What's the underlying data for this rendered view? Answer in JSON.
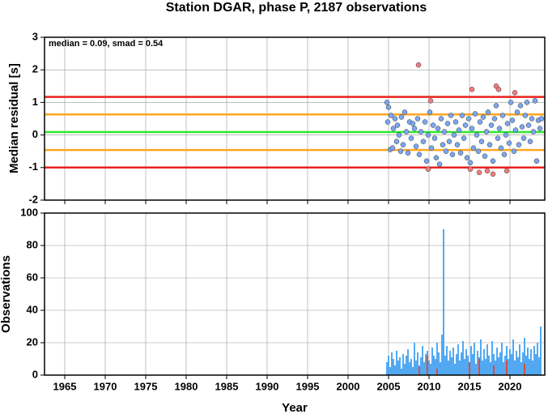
{
  "chart_data": [
    {
      "type": "scatter",
      "title": "Station DGAR, phase P, 2187 observations",
      "ylabel": "Median residual [s]",
      "annotation": "median = 0.09, smad = 0.54",
      "xlim": [
        1962.5,
        2024.3
      ],
      "ylim": [
        -2,
        3
      ],
      "yticks": [
        -2,
        -1,
        0,
        1,
        2,
        3
      ],
      "grid": true,
      "hlines": [
        {
          "value": 1.17,
          "color": "#e8231c"
        },
        {
          "value": -1.0,
          "color": "#e8231c"
        },
        {
          "value": 0.63,
          "color": "#ffa621"
        },
        {
          "value": -0.46,
          "color": "#ffa621"
        },
        {
          "value": 0.09,
          "color": "#2ee82e"
        }
      ],
      "series": [
        {
          "color": "#7aa7f0",
          "x": [
            2004.8,
            2004.9,
            2005.0,
            2005.2,
            2005.3,
            2005.5,
            2005.6,
            2005.8,
            2006.0,
            2006.1,
            2006.3,
            2006.5,
            2006.6,
            2006.8,
            2007.0,
            2007.2,
            2007.4,
            2007.6,
            2007.8,
            2008.0,
            2008.2,
            2008.4,
            2008.6,
            2008.8,
            2009.0,
            2009.3,
            2009.5,
            2009.7,
            2009.9,
            2010.1,
            2010.3,
            2010.5,
            2010.7,
            2010.9,
            2011.1,
            2011.3,
            2011.5,
            2011.7,
            2011.9,
            2012.1,
            2012.3,
            2012.5,
            2012.7,
            2012.9,
            2013.1,
            2013.3,
            2013.5,
            2013.7,
            2013.9,
            2014.1,
            2014.3,
            2014.5,
            2014.7,
            2014.9,
            2015.1,
            2015.3,
            2015.5,
            2015.7,
            2015.9,
            2016.1,
            2016.3,
            2016.5,
            2016.7,
            2016.9,
            2017.1,
            2017.3,
            2017.5,
            2017.7,
            2017.9,
            2018.1,
            2018.3,
            2018.5,
            2018.7,
            2018.9,
            2019.1,
            2019.3,
            2019.5,
            2019.7,
            2019.9,
            2020.1,
            2020.3,
            2020.5,
            2020.7,
            2020.9,
            2021.1,
            2021.3,
            2021.5,
            2021.7,
            2021.9,
            2022.1,
            2022.3,
            2022.5,
            2022.7,
            2022.9,
            2023.1,
            2023.3,
            2023.5,
            2023.7,
            2023.9
          ],
          "values": [
            1.0,
            0.4,
            0.85,
            -0.45,
            0.6,
            -0.4,
            0.2,
            0.5,
            -0.2,
            0.3,
            0.0,
            -0.5,
            0.55,
            -0.3,
            0.7,
            0.1,
            -0.55,
            0.4,
            -0.1,
            0.35,
            0.2,
            -0.35,
            0.5,
            -0.6,
            0.1,
            -0.2,
            0.4,
            -0.8,
            0.0,
            0.7,
            -0.4,
            0.3,
            -0.1,
            -0.7,
            0.2,
            -0.9,
            0.5,
            -0.3,
            0.1,
            -0.5,
            0.35,
            -0.2,
            0.6,
            -0.6,
            0.0,
            0.4,
            -0.3,
            0.15,
            -0.55,
            0.6,
            -0.1,
            0.3,
            -0.7,
            0.5,
            -0.85,
            0.2,
            -0.4,
            0.65,
            0.0,
            -0.5,
            0.4,
            -0.2,
            0.55,
            -0.65,
            0.1,
            0.7,
            -0.3,
            0.3,
            -0.8,
            0.5,
            0.9,
            -0.1,
            0.2,
            -0.4,
            0.6,
            -0.6,
            0.0,
            0.35,
            -0.25,
            1.0,
            0.45,
            -0.5,
            0.15,
            0.7,
            -0.3,
            0.9,
            0.25,
            -0.1,
            0.6,
            1.0,
            0.3,
            -0.2,
            0.5,
            0.1,
            1.05,
            -0.8,
            0.45,
            0.2,
            0.5
          ]
        },
        {
          "color": "#f47b7b",
          "x": [
            2008.7,
            2009.9,
            2010.2,
            2015.1,
            2015.3,
            2016.2,
            2017.2,
            2017.9,
            2018.3,
            2018.6,
            2019.6,
            2020.6
          ],
          "values": [
            2.15,
            -1.05,
            1.05,
            -1.05,
            1.4,
            -1.15,
            -1.1,
            -1.2,
            1.5,
            1.4,
            -1.1,
            1.3
          ]
        }
      ]
    },
    {
      "type": "bar",
      "ylabel": "Observations",
      "xlabel": "Year",
      "xlim": [
        1962.5,
        2024.3
      ],
      "xticks": [
        1965,
        1970,
        1975,
        1980,
        1985,
        1990,
        1995,
        2000,
        2005,
        2010,
        2015,
        2020
      ],
      "ylim": [
        0,
        100
      ],
      "yticks": [
        0,
        20,
        40,
        60,
        80,
        100
      ],
      "grid": true,
      "series": [
        {
          "color": "#3fa0f0",
          "x": [
            2004.8,
            2005.0,
            2005.2,
            2005.4,
            2005.6,
            2005.8,
            2006.0,
            2006.2,
            2006.4,
            2006.6,
            2006.8,
            2007.0,
            2007.2,
            2007.4,
            2007.6,
            2007.8,
            2008.0,
            2008.2,
            2008.4,
            2008.6,
            2008.8,
            2009.0,
            2009.2,
            2009.4,
            2009.6,
            2009.8,
            2010.0,
            2010.2,
            2010.4,
            2010.6,
            2010.8,
            2011.0,
            2011.2,
            2011.4,
            2011.6,
            2011.8,
            2012.0,
            2012.2,
            2012.4,
            2012.6,
            2012.8,
            2013.0,
            2013.2,
            2013.4,
            2013.6,
            2013.8,
            2014.0,
            2014.2,
            2014.4,
            2014.6,
            2014.8,
            2015.0,
            2015.2,
            2015.4,
            2015.6,
            2015.8,
            2016.0,
            2016.2,
            2016.4,
            2016.6,
            2016.8,
            2017.0,
            2017.2,
            2017.4,
            2017.6,
            2017.8,
            2018.0,
            2018.2,
            2018.4,
            2018.6,
            2018.8,
            2019.0,
            2019.2,
            2019.4,
            2019.6,
            2019.8,
            2020.0,
            2020.2,
            2020.4,
            2020.6,
            2020.8,
            2021.0,
            2021.2,
            2021.4,
            2021.6,
            2021.8,
            2022.0,
            2022.2,
            2022.4,
            2022.6,
            2022.8,
            2023.0,
            2023.2,
            2023.4,
            2023.6,
            2023.8
          ],
          "values": [
            8,
            12,
            5,
            14,
            10,
            6,
            15,
            9,
            11,
            4,
            13,
            7,
            12,
            16,
            8,
            10,
            5,
            20,
            9,
            14,
            6,
            11,
            18,
            8,
            13,
            15,
            9,
            7,
            17,
            12,
            10,
            20,
            14,
            8,
            25,
            90,
            12,
            18,
            9,
            15,
            11,
            17,
            7,
            13,
            19,
            9,
            14,
            21,
            10,
            16,
            12,
            8,
            18,
            13,
            20,
            7,
            15,
            11,
            22,
            9,
            16,
            10,
            19,
            12,
            8,
            21,
            13,
            9,
            17,
            11,
            14,
            20,
            8,
            12,
            18,
            10,
            16,
            13,
            22,
            9,
            15,
            11,
            19,
            8,
            14,
            23,
            12,
            17,
            10,
            16,
            9,
            18,
            13,
            20,
            11,
            30
          ]
        },
        {
          "color": "#e8402c",
          "x": [
            2008.8,
            2009.8,
            2011.0,
            2015.0,
            2016.2,
            2018.0,
            2019.6,
            2021.8
          ],
          "values": [
            5,
            12,
            4,
            8,
            10,
            6,
            9,
            7
          ]
        }
      ]
    }
  ]
}
